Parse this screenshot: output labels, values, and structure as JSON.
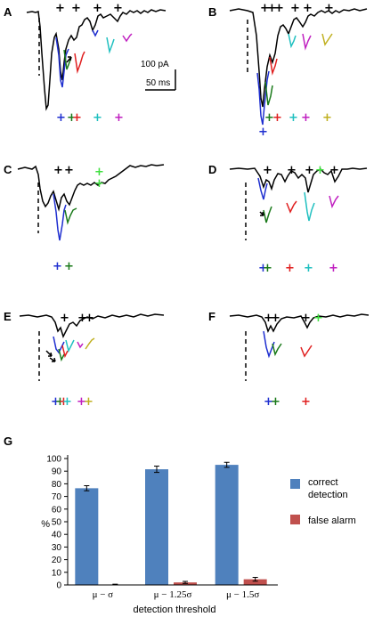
{
  "panels": [
    {
      "letter": "A"
    },
    {
      "letter": "B"
    },
    {
      "letter": "C"
    },
    {
      "letter": "D"
    },
    {
      "letter": "E"
    },
    {
      "letter": "F"
    },
    {
      "letter": "G"
    }
  ],
  "scale_bar": {
    "current": "100 pA",
    "time": "50 ms"
  },
  "marker_glyph": "+",
  "colors": {
    "trace": "#000000",
    "blue": "#1f2fd0",
    "green": "#1a7a1a",
    "red": "#e02020",
    "cyan": "#20c0c0",
    "magenta": "#c020c0",
    "yellow": "#c0b020",
    "lime": "#40e040",
    "bar_correct": "#4f81bd",
    "bar_false": "#c0504d"
  },
  "chart_data": {
    "type": "bar",
    "panel": "G",
    "categories": [
      "μ − σ",
      "μ − 1.25σ",
      "μ − 1.5σ"
    ],
    "series": [
      {
        "name": "correct detection",
        "values": [
          76.5,
          91.5,
          95
        ],
        "errors": [
          2,
          2.5,
          2
        ]
      },
      {
        "name": "false alarm",
        "values": [
          0.3,
          2,
          4.5
        ],
        "errors": [
          0.3,
          0.8,
          1.5
        ]
      }
    ],
    "ylabel": "%",
    "xlabel": "detection threshold",
    "ylim": [
      0,
      100
    ],
    "yticks": [
      0,
      10,
      20,
      30,
      40,
      50,
      60,
      70,
      80,
      90,
      100
    ],
    "legend_placement": "right"
  }
}
